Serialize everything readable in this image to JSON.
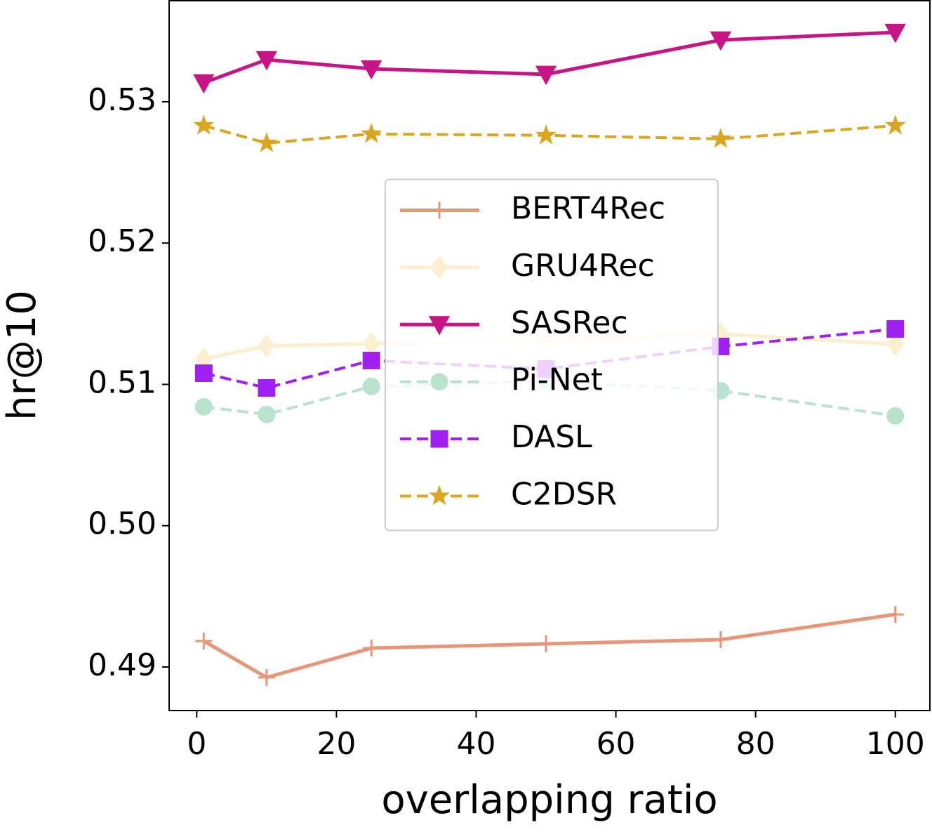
{
  "chart_data": {
    "type": "line",
    "x": [
      1,
      10,
      25,
      50,
      75,
      100
    ],
    "xlabel": "overlapping ratio",
    "ylabel": "hr@10",
    "xlim": [
      -3.95,
      104.95
    ],
    "xticks": [
      0,
      20,
      40,
      60,
      80,
      100
    ],
    "ylim": [
      0.48692,
      0.53715
    ],
    "yticks": [
      {
        "value": 0.49,
        "label": "0.49"
      },
      {
        "value": 0.5,
        "label": "0.50"
      },
      {
        "value": 0.51,
        "label": "0.51"
      },
      {
        "value": 0.52,
        "label": "0.52"
      },
      {
        "value": 0.53,
        "label": "0.53"
      }
    ],
    "legend": "center",
    "series": [
      {
        "name": "BERT4Rec",
        "color": "#e8967a",
        "marker": "plus",
        "linestyle": "solid",
        "values": [
          0.49184,
          0.48926,
          0.49134,
          0.49164,
          0.49194,
          0.49372
        ]
      },
      {
        "name": "GRU4Rec",
        "color": "#fcefcf",
        "marker": "diamond",
        "linestyle": "solid",
        "values": [
          0.51179,
          0.51273,
          0.51288,
          0.51308,
          0.51357,
          0.51283
        ]
      },
      {
        "name": "SASRec",
        "color": "#c71585",
        "marker": "triangle-down",
        "linestyle": "solid",
        "values": [
          0.53134,
          0.53298,
          0.53233,
          0.53194,
          0.53437,
          0.53491
        ]
      },
      {
        "name": "Pi-Net",
        "color": "#b9e2cf",
        "marker": "circle",
        "linestyle": "dashed",
        "values": [
          0.50841,
          0.50787,
          0.50985,
          0.51025,
          0.50955,
          0.50777
        ]
      },
      {
        "name": "DASL",
        "color": "#a020f0",
        "marker": "square",
        "linestyle": "dashed",
        "values": [
          0.51079,
          0.50975,
          0.51169,
          0.51109,
          0.51268,
          0.51392
        ]
      },
      {
        "name": "C2DSR",
        "color": "#daa520",
        "marker": "star",
        "linestyle": "dashed",
        "values": [
          0.52831,
          0.52707,
          0.52772,
          0.52762,
          0.52737,
          0.52831
        ]
      }
    ]
  }
}
